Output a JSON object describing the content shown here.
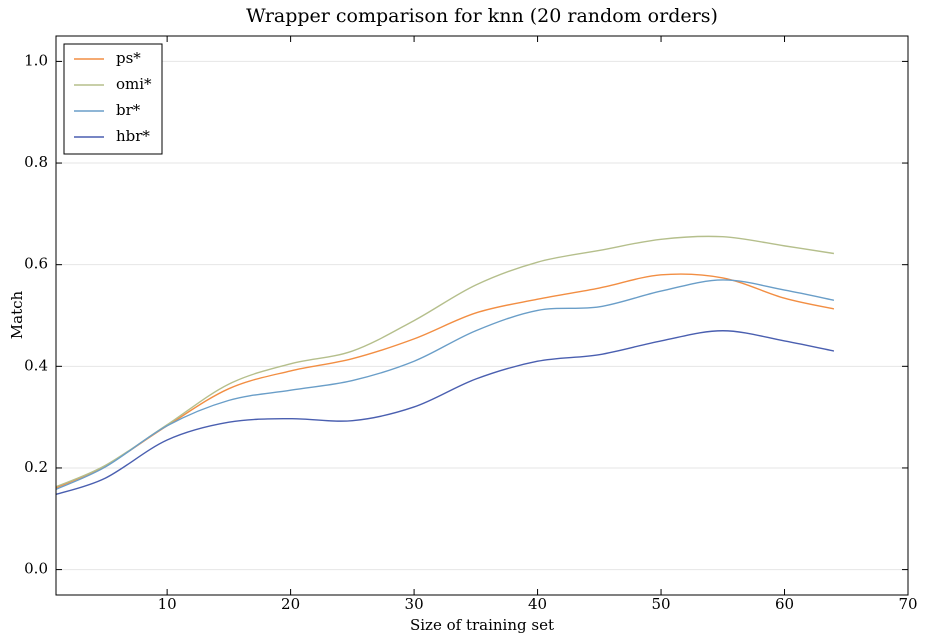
{
  "chart_data": {
    "type": "line",
    "title": "Wrapper comparison for knn (20 random orders)",
    "x_label": "Size of training set",
    "y_label": "Match",
    "x": [
      1,
      5,
      10,
      15,
      20,
      25,
      30,
      35,
      40,
      45,
      50,
      55,
      60,
      64
    ],
    "series": [
      {
        "name": "ps*",
        "color": "#f28e43",
        "values": [
          0.161,
          0.204,
          0.283,
          0.356,
          0.391,
          0.415,
          0.454,
          0.505,
          0.532,
          0.554,
          0.58,
          0.574,
          0.534,
          0.513
        ]
      },
      {
        "name": "omi*",
        "color": "#b5bf8c",
        "values": [
          0.163,
          0.205,
          0.285,
          0.365,
          0.405,
          0.43,
          0.49,
          0.56,
          0.605,
          0.628,
          0.65,
          0.655,
          0.637,
          0.622
        ]
      },
      {
        "name": "br*",
        "color": "#6a9ec8",
        "values": [
          0.158,
          0.202,
          0.283,
          0.333,
          0.353,
          0.372,
          0.41,
          0.47,
          0.51,
          0.517,
          0.548,
          0.57,
          0.55,
          0.53
        ]
      },
      {
        "name": "hbr*",
        "color": "#4a5fb0",
        "values": [
          0.148,
          0.18,
          0.255,
          0.29,
          0.297,
          0.293,
          0.32,
          0.375,
          0.41,
          0.423,
          0.45,
          0.47,
          0.45,
          0.43
        ]
      }
    ],
    "xlim": [
      1,
      70
    ],
    "xticks": [
      10,
      20,
      30,
      40,
      50,
      60,
      70
    ],
    "ylim": [
      -0.05,
      1.05
    ],
    "yticks": [
      {
        "value": 0,
        "label": "0.0"
      },
      0.2,
      0.4,
      0.6,
      0.8,
      {
        "value": 1,
        "label": "1.0"
      }
    ],
    "grid": "y",
    "legend": "upper-left"
  }
}
